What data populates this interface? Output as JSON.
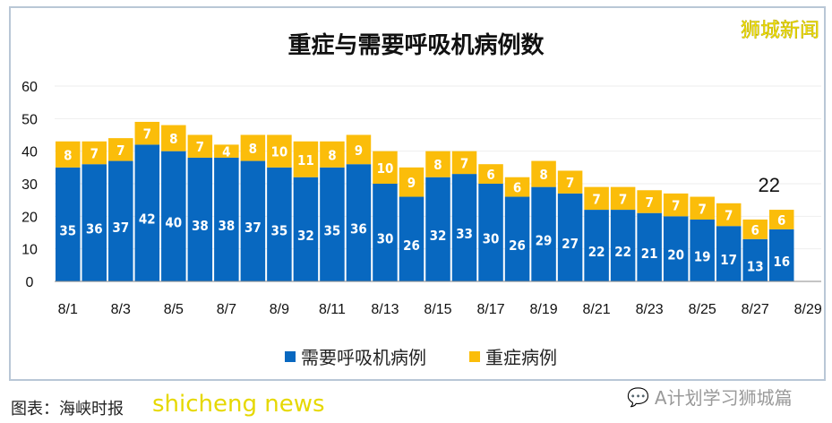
{
  "chart_data": {
    "type": "bar",
    "stacked": true,
    "title": "重症与需要呼吸机病例数",
    "categories": [
      "8/1",
      "8/2",
      "8/3",
      "8/4",
      "8/5",
      "8/6",
      "8/7",
      "8/8",
      "8/9",
      "8/10",
      "8/11",
      "8/12",
      "8/13",
      "8/14",
      "8/15",
      "8/16",
      "8/17",
      "8/18",
      "8/19",
      "8/20",
      "8/21",
      "8/22",
      "8/23",
      "8/24",
      "8/25",
      "8/26",
      "8/27",
      "8/28"
    ],
    "x_tick_labels": [
      "8/1",
      "8/3",
      "8/5",
      "8/7",
      "8/9",
      "8/11",
      "8/13",
      "8/15",
      "8/17",
      "8/19",
      "8/21",
      "8/23",
      "8/25",
      "8/27",
      "8/29"
    ],
    "series": [
      {
        "name": "需要呼吸机病例",
        "color": "#0868c0",
        "values": [
          35,
          36,
          37,
          42,
          40,
          38,
          38,
          37,
          35,
          32,
          35,
          36,
          30,
          26,
          32,
          33,
          30,
          26,
          29,
          27,
          22,
          22,
          21,
          20,
          19,
          17,
          13,
          16
        ]
      },
      {
        "name": "重症病例",
        "color": "#fbbd0a",
        "values": [
          8,
          7,
          7,
          7,
          8,
          7,
          4,
          8,
          10,
          11,
          8,
          9,
          10,
          9,
          8,
          7,
          6,
          6,
          8,
          7,
          7,
          7,
          7,
          7,
          7,
          7,
          6,
          6
        ]
      }
    ],
    "ylim": [
      0,
      60
    ],
    "y_ticks": [
      0,
      10,
      20,
      30,
      40,
      50,
      60
    ],
    "grid": true,
    "legend": "bottom",
    "annotation": "22"
  },
  "watermark": "狮城新闻",
  "caption": "图表：海峡时报",
  "brand": "shicheng news",
  "wechat_label": "A计划学习狮城篇"
}
